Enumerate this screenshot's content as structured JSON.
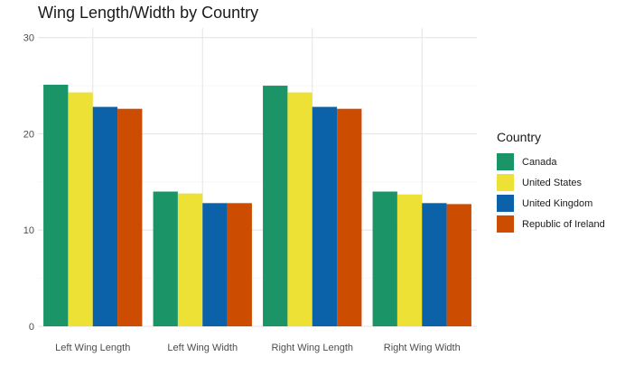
{
  "chart_data": {
    "type": "bar",
    "title": "Wing Length/Width by Country",
    "xlabel": "",
    "ylabel": "",
    "categories": [
      "Left Wing Length",
      "Left Wing Width",
      "Right Wing Length",
      "Right Wing Width"
    ],
    "series": [
      {
        "name": "Canada",
        "color": "#1b9568",
        "values": [
          25.1,
          14.0,
          25.0,
          14.0
        ]
      },
      {
        "name": "United States",
        "color": "#ede136",
        "values": [
          24.3,
          13.8,
          24.3,
          13.7
        ]
      },
      {
        "name": "United Kingdom",
        "color": "#0b62a8",
        "values": [
          22.8,
          12.8,
          22.8,
          12.8
        ]
      },
      {
        "name": "Republic of Ireland",
        "color": "#cc4c02",
        "values": [
          22.6,
          12.8,
          22.6,
          12.7
        ]
      }
    ],
    "ylim": [
      0,
      31
    ],
    "yticks": [
      0,
      10,
      20,
      30
    ],
    "grid": true,
    "legend": {
      "title": "Country",
      "placement": "right"
    }
  }
}
